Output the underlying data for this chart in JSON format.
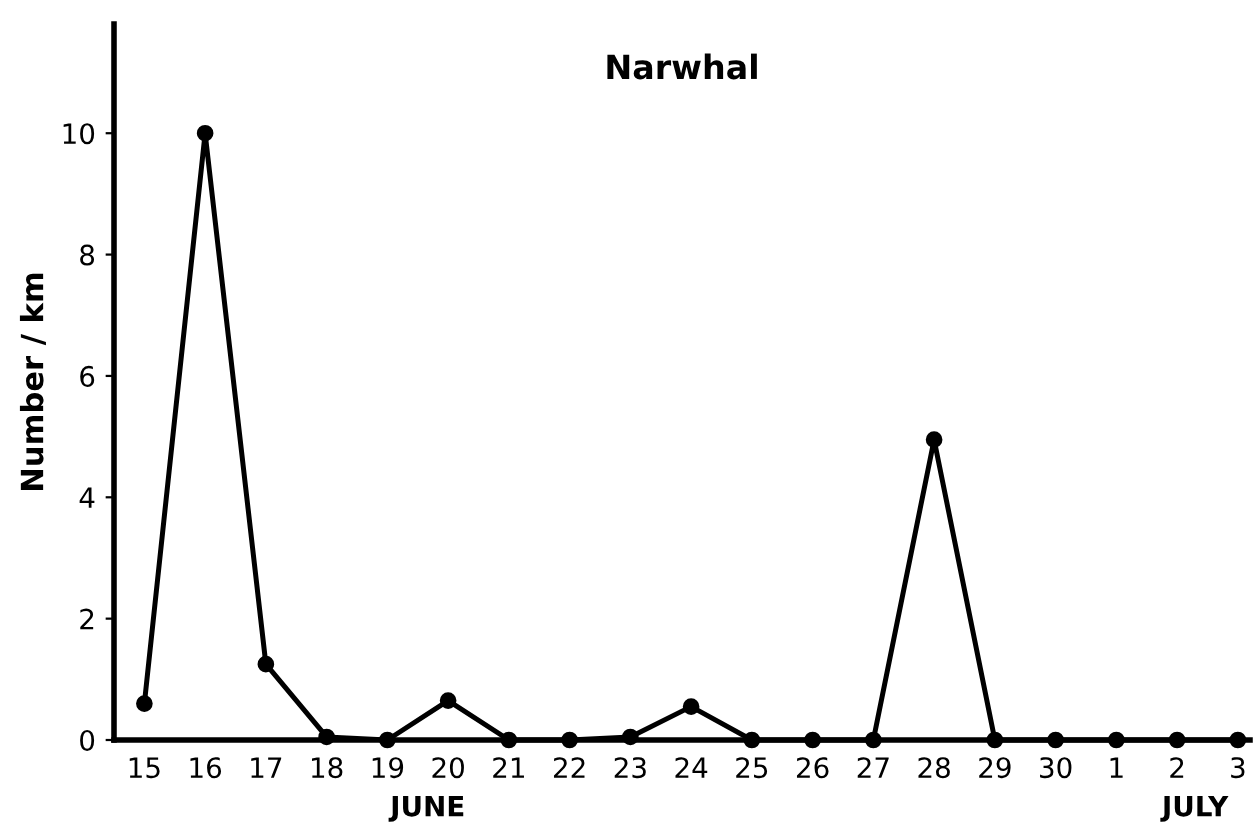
{
  "chart_data": {
    "type": "line",
    "title": "Narwhal",
    "ylabel": "Number / km",
    "categories": [
      "15",
      "16",
      "17",
      "18",
      "19",
      "20",
      "21",
      "22",
      "23",
      "24",
      "25",
      "26",
      "27",
      "28",
      "29",
      "30",
      "1",
      "2",
      "3"
    ],
    "series": [
      {
        "color": "#000000",
        "values": [
          0.6,
          10,
          1.25,
          0.05,
          0,
          0.65,
          0,
          0,
          0.05,
          0.55,
          0,
          0,
          0,
          4.95,
          0,
          0,
          0,
          0,
          0
        ]
      }
    ],
    "ylim": [
      0,
      11.8
    ],
    "yticks": [
      0,
      2,
      4,
      6,
      8,
      10
    ],
    "marker": "circle",
    "line_style": "solid",
    "annotations": [
      "JUNE",
      "JULY"
    ]
  }
}
